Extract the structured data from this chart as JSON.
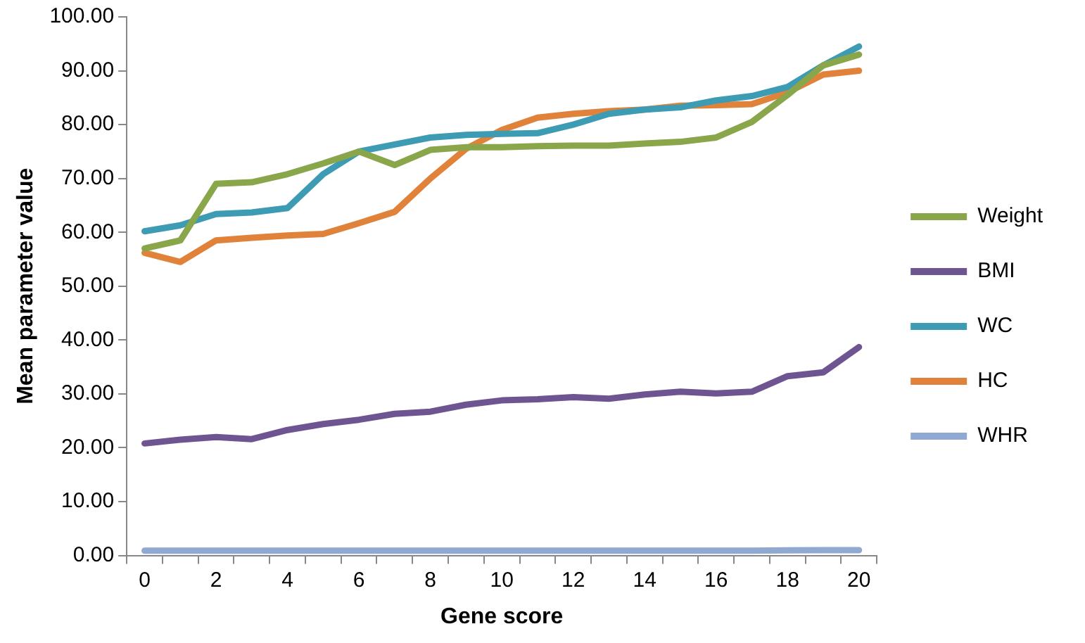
{
  "chart_data": {
    "type": "line",
    "xlabel": "Gene score",
    "ylabel": "Mean parameter value",
    "categories": [
      "0",
      null,
      "2",
      null,
      "4",
      null,
      "6",
      null,
      "8",
      null,
      "10",
      null,
      "12",
      null,
      "14",
      null,
      "16",
      null,
      "18",
      null,
      "20"
    ],
    "series": [
      {
        "name": "Weight",
        "color": "#8aa64a",
        "values": [
          57,
          58.5,
          69,
          69.3,
          70.8,
          72.8,
          75,
          72.5,
          75.3,
          75.8,
          75.8,
          76,
          76.1,
          76.1,
          76.5,
          76.8,
          77.6,
          80.5,
          85.5,
          91,
          93
        ]
      },
      {
        "name": "BMI",
        "color": "#6e5592",
        "values": [
          20.8,
          21.5,
          22,
          21.6,
          23.3,
          24.4,
          25.2,
          26.3,
          26.7,
          28,
          28.8,
          29,
          29.4,
          29.1,
          29.9,
          30.4,
          30.1,
          30.4,
          33.3,
          34,
          38.7
        ]
      },
      {
        "name": "WC",
        "color": "#3d9bb3",
        "values": [
          60.2,
          61.3,
          63.4,
          63.7,
          64.5,
          70.8,
          75,
          76.3,
          77.6,
          78.1,
          78.3,
          78.4,
          80,
          82,
          82.8,
          83.2,
          84.5,
          85.3,
          87,
          91,
          94.5
        ]
      },
      {
        "name": "HC",
        "color": "#e0823a",
        "values": [
          56.2,
          54.5,
          58.5,
          59,
          59.4,
          59.7,
          61.7,
          63.8,
          70,
          75.5,
          79,
          81.3,
          82,
          82.5,
          82.8,
          83.5,
          83.6,
          83.8,
          86,
          89.3,
          90
        ]
      },
      {
        "name": "WHR",
        "color": "#90a9d2",
        "values": [
          0.9,
          0.9,
          0.9,
          0.9,
          0.9,
          0.9,
          0.9,
          0.9,
          0.9,
          0.9,
          0.9,
          0.9,
          0.9,
          0.9,
          0.9,
          0.9,
          0.9,
          0.9,
          0.95,
          1,
          1
        ]
      }
    ],
    "ylim": [
      0,
      100
    ],
    "yticks": [
      {
        "value": 0,
        "label": "0.00"
      },
      {
        "value": 10,
        "label": "10.00"
      },
      {
        "value": 20,
        "label": "20.00"
      },
      {
        "value": 30,
        "label": "30.00"
      },
      {
        "value": 40,
        "label": "40.00"
      },
      {
        "value": 50,
        "label": "50.00"
      },
      {
        "value": 60,
        "label": "60.00"
      },
      {
        "value": 70,
        "label": "70.00"
      },
      {
        "value": 80,
        "label": "80.00"
      },
      {
        "value": 90,
        "label": "90.00"
      },
      {
        "value": 100,
        "label": "100.00"
      }
    ],
    "grid": false,
    "legend": "right",
    "marker": "none",
    "line_style": "solid"
  }
}
